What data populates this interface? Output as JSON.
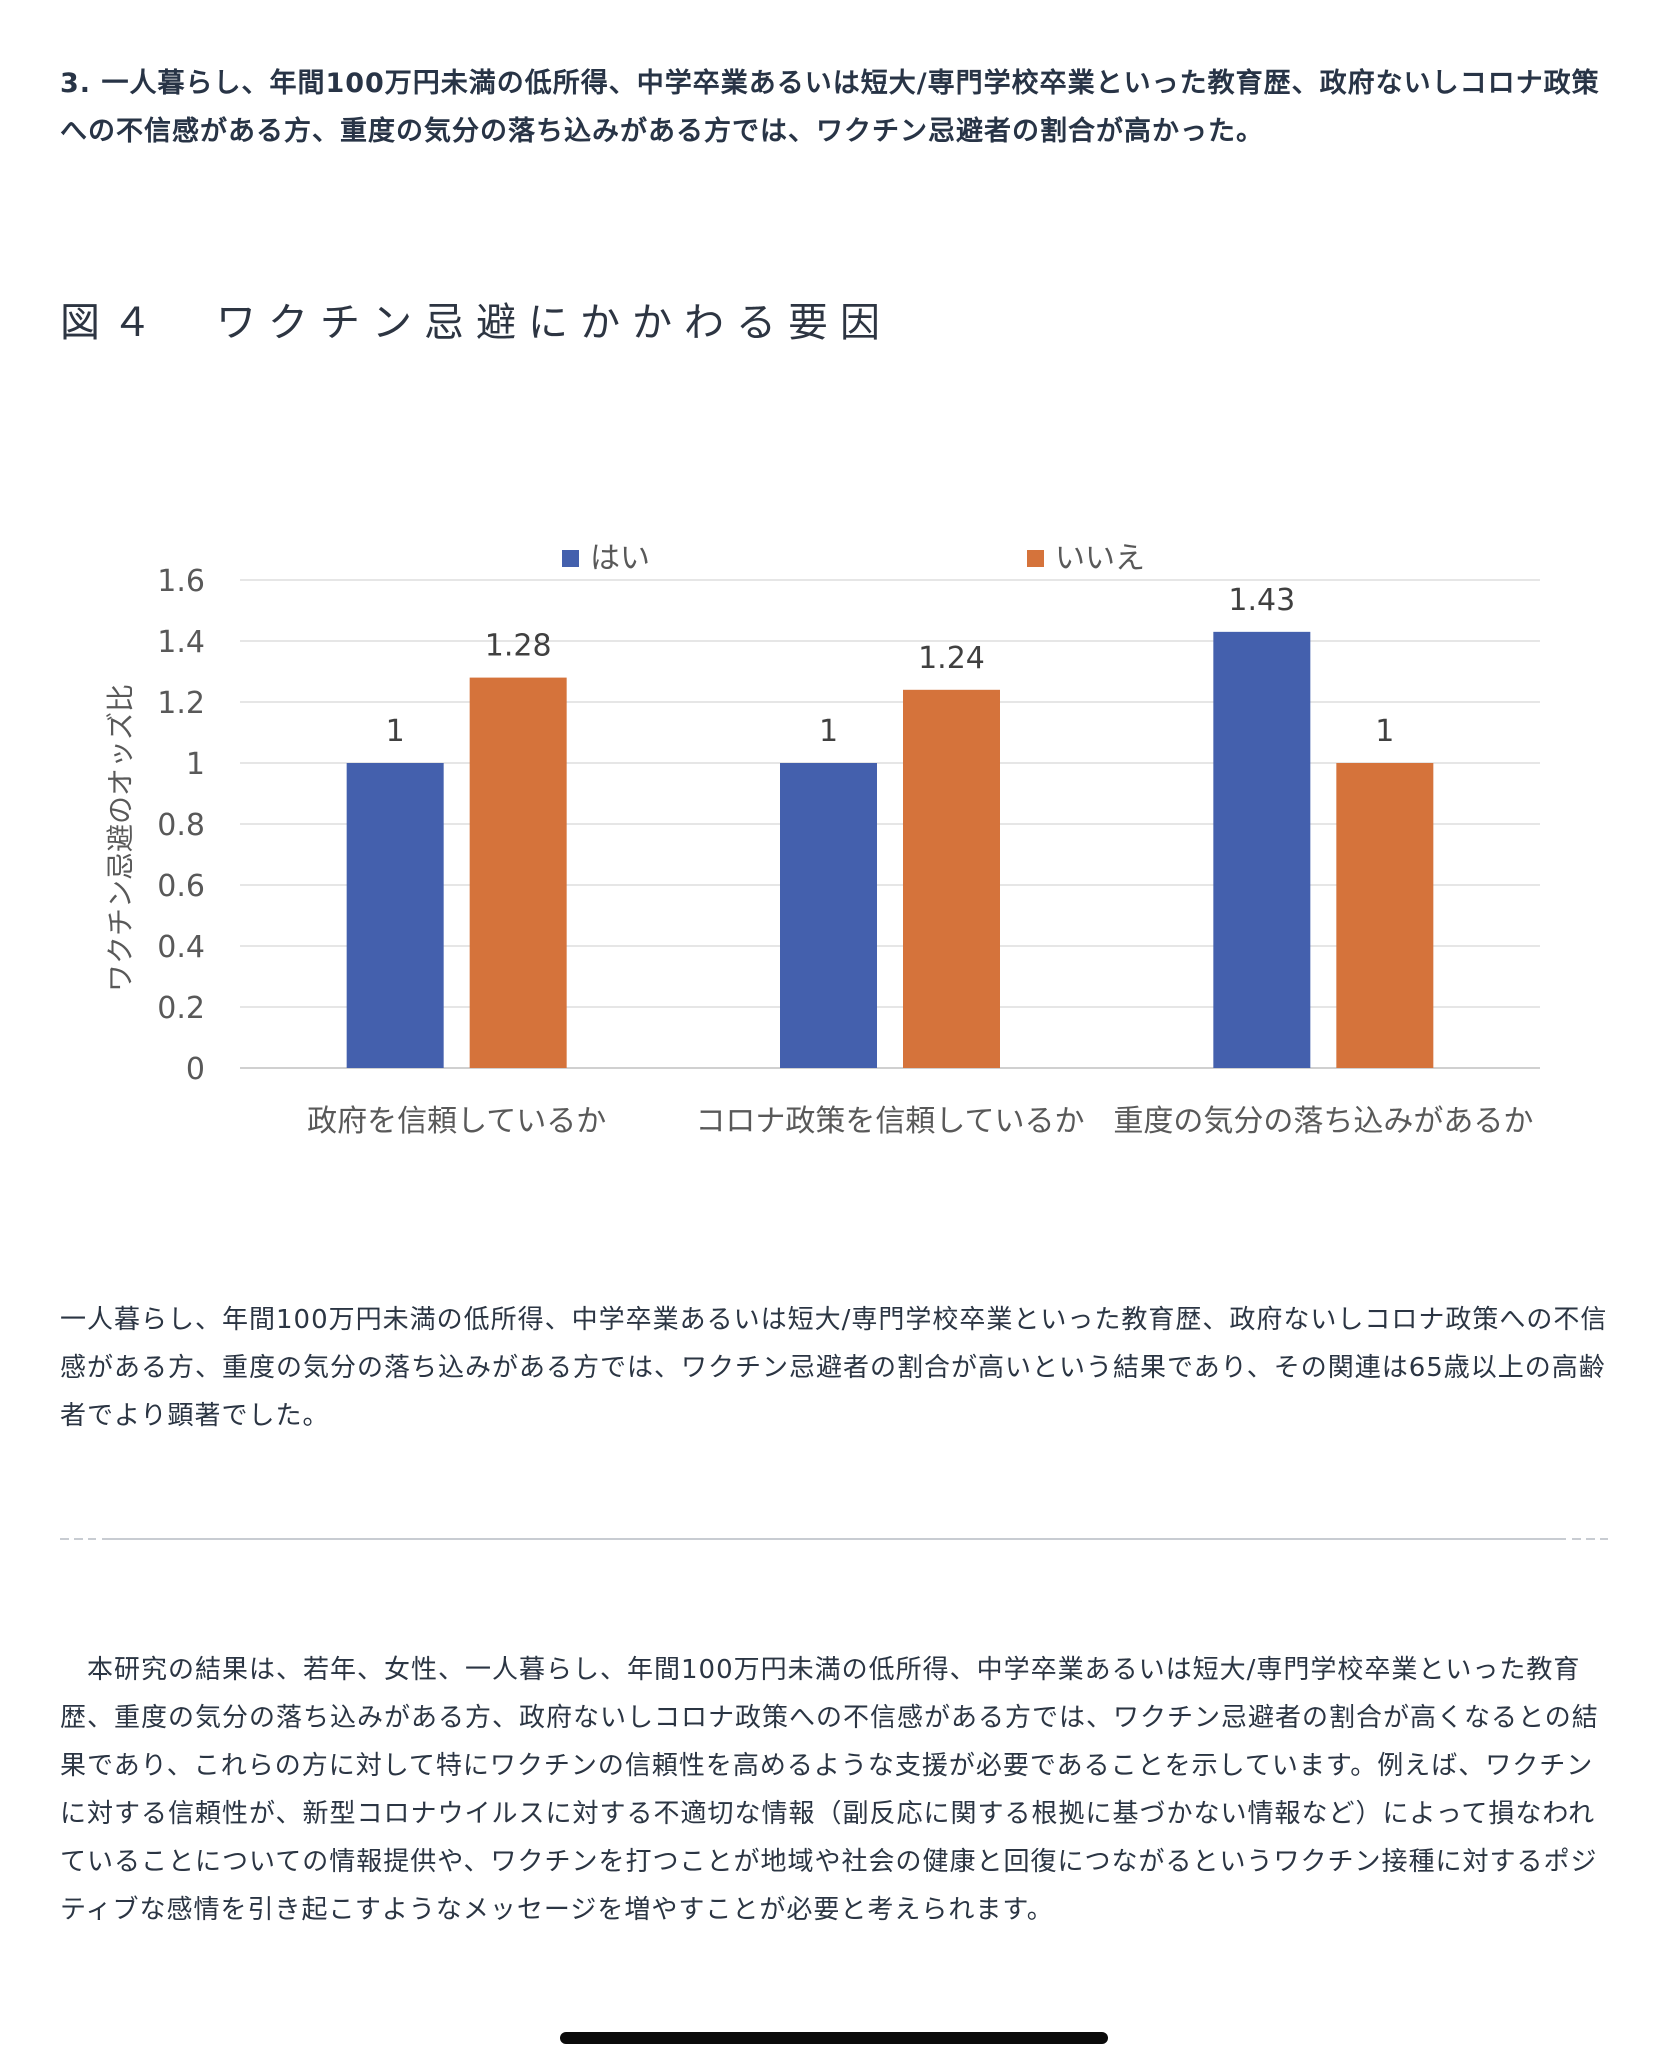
{
  "lead_text": "3. 一人暮らし、年間100万円未満の低所得、中学卒業あるいは短大/専門学校卒業といった教育歴、政府ないしコロナ政策への不信感がある方、重度の気分の落ち込みがある方では、ワクチン忌避者の割合が高かった。",
  "figure_title": "図４　ワクチン忌避にかかわる要因",
  "chart_data": {
    "type": "bar",
    "categories": [
      "政府を信頼しているか",
      "コロナ政策を信頼しているか",
      "重度の気分の落ち込みがあるか"
    ],
    "series": [
      {
        "name": "はい",
        "values": [
          1,
          1,
          1.43
        ],
        "color": "#4460ad"
      },
      {
        "name": "いいえ",
        "values": [
          1.28,
          1.24,
          1
        ],
        "color": "#d5733b"
      }
    ],
    "data_labels": [
      [
        "1",
        "1",
        "1.43"
      ],
      [
        "1.28",
        "1.24",
        "1"
      ]
    ],
    "title": "",
    "xlabel": "",
    "ylabel": "ワクチン忌避のオッズ比",
    "ylim": [
      0,
      1.6
    ],
    "yticks": [
      0,
      0.2,
      0.4,
      0.6,
      0.8,
      1,
      1.2,
      1.4,
      1.6
    ],
    "ytick_labels": [
      "0",
      "0.2",
      "0.4",
      "0.6",
      "0.8",
      "1",
      "1.2",
      "1.4",
      "1.6"
    ],
    "grid": true,
    "legend_position": "top"
  },
  "paragraph1": "一人暮らし、年間100万円未満の低所得、中学卒業あるいは短大/専門学校卒業といった教育歴、政府ないしコロナ政策への不信感がある方、重度の気分の落ち込みがある方では、ワクチン忌避者の割合が高いという結果であり、その関連は65歳以上の高齢者でより顕著でした。",
  "paragraph2": "　本研究の結果は、若年、女性、一人暮らし、年間100万円未満の低所得、中学卒業あるいは短大/専門学校卒業といった教育歴、重度の気分の落ち込みがある方、政府ないしコロナ政策への不信感がある方では、ワクチン忌避者の割合が高くなるとの結果であり、これらの方に対して特にワクチンの信頼性を高めるような支援が必要であることを示しています。例えば、ワクチンに対する信頼性が、新型コロナウイルスに対する不適切な情報（副反応に関する根拠に基づかない情報など）によって損なわれていることについての情報提供や、ワクチンを打つことが地域や社会の健康と回復につながるというワクチン接種に対するポジティブな感情を引き起こすようなメッセージを増やすことが必要と考えられます。"
}
